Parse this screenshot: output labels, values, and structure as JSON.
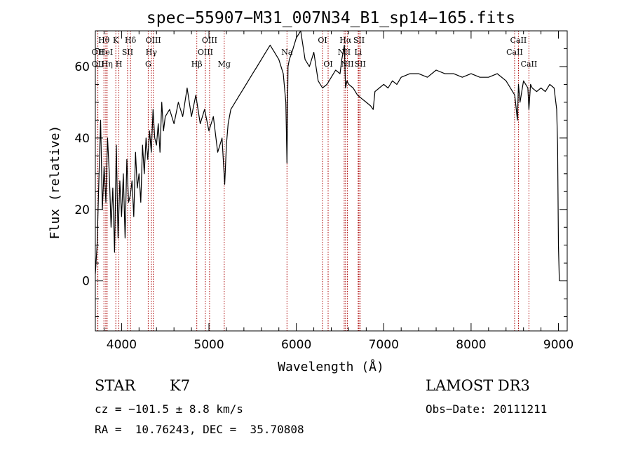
{
  "chart_data": {
    "type": "line",
    "title": "spec−55907−M31_007N34_B1_sp14−165.fits",
    "xlabel": "Wavelength (Å)",
    "ylabel": "Flux (relative)",
    "xlim": [
      3700,
      9100
    ],
    "ylim": [
      -14,
      70
    ],
    "xticks": [
      4000,
      5000,
      6000,
      7000,
      8000,
      9000
    ],
    "yticks": [
      0,
      20,
      40,
      60
    ],
    "grid": false,
    "legend": "none",
    "series": [
      {
        "name": "flux",
        "x": [
          3700,
          3720,
          3740,
          3760,
          3780,
          3800,
          3820,
          3840,
          3860,
          3880,
          3900,
          3920,
          3940,
          3960,
          3980,
          4000,
          4020,
          4040,
          4060,
          4080,
          4100,
          4120,
          4140,
          4160,
          4180,
          4200,
          4220,
          4240,
          4260,
          4280,
          4300,
          4320,
          4340,
          4360,
          4380,
          4400,
          4420,
          4440,
          4460,
          4480,
          4500,
          4550,
          4600,
          4650,
          4700,
          4750,
          4800,
          4850,
          4900,
          4950,
          5000,
          5050,
          5100,
          5150,
          5180,
          5200,
          5220,
          5250,
          5300,
          5350,
          5400,
          5450,
          5500,
          5550,
          5600,
          5650,
          5700,
          5750,
          5800,
          5850,
          5880,
          5893,
          5905,
          5920,
          5950,
          6000,
          6050,
          6100,
          6150,
          6200,
          6250,
          6300,
          6350,
          6400,
          6450,
          6500,
          6520,
          6550,
          6563,
          6580,
          6600,
          6650,
          6700,
          6750,
          6800,
          6850,
          6880,
          6900,
          6950,
          7000,
          7050,
          7100,
          7150,
          7200,
          7300,
          7400,
          7500,
          7600,
          7700,
          7800,
          7900,
          8000,
          8100,
          8200,
          8300,
          8400,
          8450,
          8500,
          8530,
          8542,
          8560,
          8600,
          8650,
          8662,
          8680,
          8700,
          8750,
          8800,
          8850,
          8900,
          8950,
          8980,
          8990,
          9000,
          9010
        ],
        "y": [
          2,
          10,
          28,
          45,
          20,
          32,
          22,
          40,
          30,
          15,
          26,
          8,
          38,
          12,
          28,
          18,
          30,
          12,
          34,
          22,
          24,
          28,
          18,
          36,
          26,
          30,
          22,
          38,
          30,
          40,
          34,
          42,
          36,
          48,
          40,
          38,
          44,
          36,
          50,
          42,
          46,
          48,
          44,
          50,
          46,
          54,
          46,
          52,
          44,
          48,
          42,
          46,
          36,
          40,
          27,
          38,
          44,
          48,
          50,
          52,
          54,
          56,
          58,
          60,
          62,
          64,
          66,
          64,
          62,
          58,
          50,
          33,
          60,
          62,
          64,
          68,
          70,
          62,
          60,
          64,
          56,
          54,
          55,
          57,
          59,
          58,
          62,
          66,
          54,
          56,
          55,
          54,
          52,
          51,
          50,
          49,
          48,
          53,
          54,
          55,
          54,
          56,
          55,
          57,
          58,
          58,
          57,
          59,
          58,
          58,
          57,
          58,
          57,
          57,
          58,
          56,
          54,
          52,
          45,
          55,
          50,
          56,
          54,
          48,
          55,
          54,
          53,
          54,
          53,
          55,
          54,
          48,
          38,
          10,
          0
        ],
        "color": "#000000"
      }
    ],
    "lines": [
      {
        "label": "Hθ",
        "x": 3798,
        "row": 1
      },
      {
        "label": "OII",
        "x": 3727,
        "row": 2
      },
      {
        "label": "OII",
        "x": 3729,
        "row": 3
      },
      {
        "label": "HeI",
        "x": 3820,
        "row": 2
      },
      {
        "label": "Hη",
        "x": 3835,
        "row": 3
      },
      {
        "label": "K",
        "x": 3934,
        "row": 1
      },
      {
        "label": "H",
        "x": 3969,
        "row": 3
      },
      {
        "label": "SII",
        "x": 4069,
        "row": 2
      },
      {
        "label": "Hδ",
        "x": 4102,
        "row": 1
      },
      {
        "label": "OIII",
        "x": 4363,
        "row": 1
      },
      {
        "label": "Hγ",
        "x": 4341,
        "row": 2
      },
      {
        "label": "G",
        "x": 4305,
        "row": 3
      },
      {
        "label": "OIII",
        "x": 5007,
        "row": 1
      },
      {
        "label": "OIII",
        "x": 4959,
        "row": 2
      },
      {
        "label": "Hβ",
        "x": 4861,
        "row": 3
      },
      {
        "label": "Mg",
        "x": 5175,
        "row": 3
      },
      {
        "label": "Na",
        "x": 5893,
        "row": 2
      },
      {
        "label": "OI",
        "x": 6300,
        "row": 1
      },
      {
        "label": "OI",
        "x": 6364,
        "row": 3
      },
      {
        "label": "Hα",
        "x": 6563,
        "row": 1
      },
      {
        "label": "SII",
        "x": 6717,
        "row": 1
      },
      {
        "label": "NII",
        "x": 6548,
        "row": 2
      },
      {
        "label": "Li",
        "x": 6708,
        "row": 2
      },
      {
        "label": "NII",
        "x": 6584,
        "row": 3
      },
      {
        "label": "SII",
        "x": 6731,
        "row": 3
      },
      {
        "label": "CaII",
        "x": 8542,
        "row": 1
      },
      {
        "label": "CaII",
        "x": 8498,
        "row": 2
      },
      {
        "label": "CaII",
        "x": 8662,
        "row": 3
      }
    ],
    "line_color": "#aa0000"
  },
  "info": {
    "class": "STAR",
    "subclass": "K7",
    "survey": "LAMOST DR3",
    "cz": "cz = −101.5 ± 8.8 km/s",
    "obs_date": "Obs−Date: 20111211",
    "radec": "RA =  10.76243, DEC =  35.70808"
  }
}
